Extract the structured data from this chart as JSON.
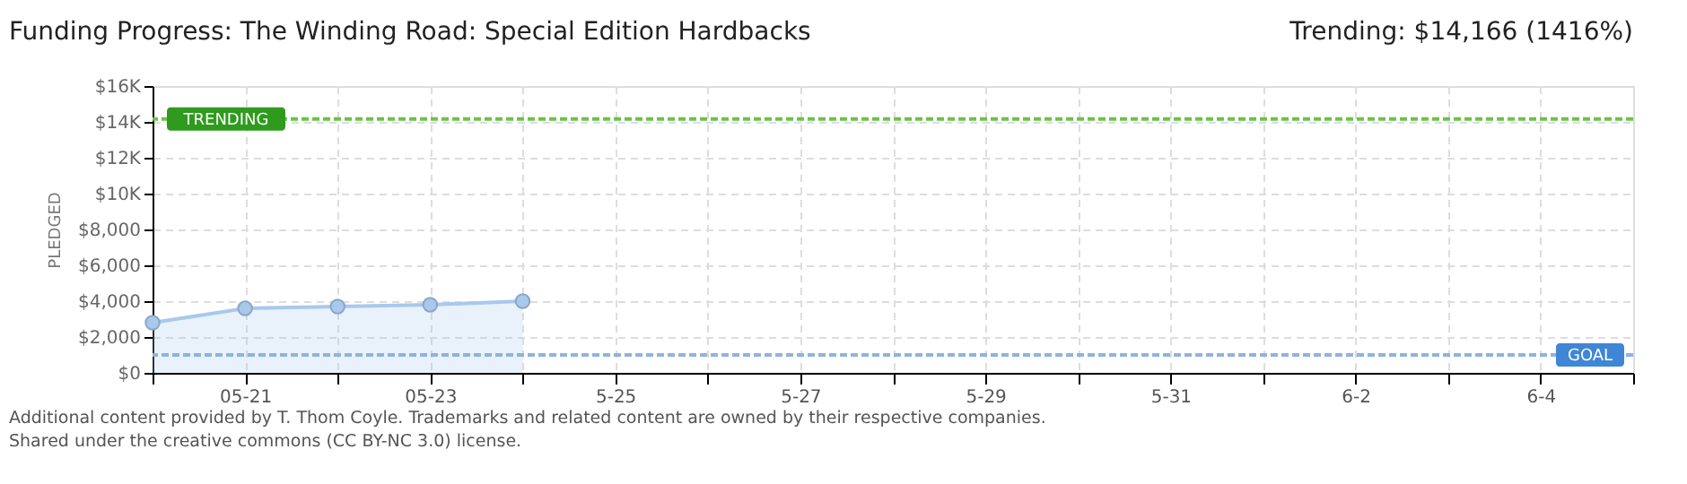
{
  "chart_data": {
    "type": "area",
    "title": "Funding Progress: The Winding Road: Special Edition Hardbacks",
    "ylabel": "PLEDGED",
    "x": [
      "--05-20",
      "--05-21",
      "--05-22",
      "--05-23",
      "--05-24"
    ],
    "series": [
      {
        "color": "#a9c8ec",
        "values": [
          2800,
          3600,
          3700,
          3800,
          4000
        ]
      }
    ],
    "marker": "circle",
    "xlim": [
      "--05-20",
      "--06-05"
    ],
    "xticks": [
      {
        "value": "--05-20",
        "label": null
      },
      {
        "value": "--05-21",
        "label": "05-21"
      },
      {
        "value": "--05-22",
        "label": null
      },
      {
        "value": "--05-23",
        "label": "05-23"
      },
      {
        "value": "--05-24",
        "label": null
      },
      {
        "value": "--05-25",
        "label": "5-25"
      },
      {
        "value": "--05-26",
        "label": null
      },
      {
        "value": "--05-27",
        "label": "5-27"
      },
      {
        "value": "--05-28",
        "label": null
      },
      {
        "value": "--05-29",
        "label": "5-29"
      },
      {
        "value": "--05-30",
        "label": null
      },
      {
        "value": "--05-31",
        "label": "5-31"
      },
      {
        "value": "--06-01",
        "label": null
      },
      {
        "value": "--06-02",
        "label": "6-2"
      },
      {
        "value": "--06-03",
        "label": null
      },
      {
        "value": "--06-04",
        "label": "6-4"
      },
      {
        "value": "--06-05",
        "label": null
      }
    ],
    "ylim": [
      0,
      16000
    ],
    "yticks": [
      {
        "value": 0,
        "label": "$0"
      },
      {
        "value": 2000,
        "label": "$2,000"
      },
      {
        "value": 4000,
        "label": "$4,000"
      },
      {
        "value": 6000,
        "label": "$6,000"
      },
      {
        "value": 8000,
        "label": "$8,000"
      },
      {
        "value": 10000,
        "label": "$10K"
      },
      {
        "value": 12000,
        "label": "$12K"
      },
      {
        "value": 14000,
        "label": "$14K"
      },
      {
        "value": 16000,
        "label": "$16K"
      }
    ],
    "grid": true,
    "ref_lines": [
      {
        "axis": "y",
        "value": 14166,
        "label": "TRENDING",
        "color": "#6cc24a",
        "line_style": "dashed"
      },
      {
        "axis": "y",
        "value": 1000,
        "label": "GOAL",
        "color": "#8fb3de",
        "line_style": "dashed"
      }
    ],
    "annotations": [
      "Trending: $14,166 (1416%)",
      "Additional content provided by T. Thom Coyle. Trademarks and related content are owned by their respective companies.",
      "Shared under the creative commons (CC BY-NC 3.0) license."
    ]
  }
}
